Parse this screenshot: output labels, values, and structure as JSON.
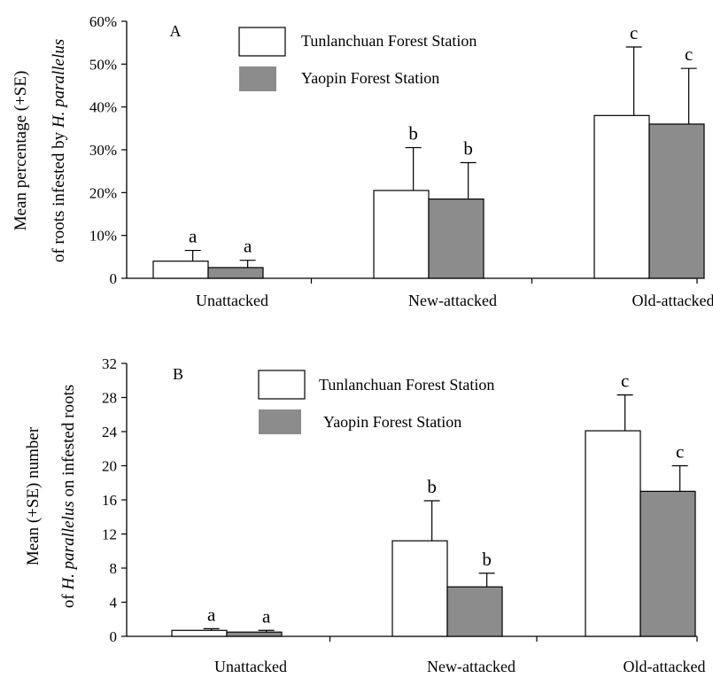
{
  "colors": {
    "series_0": "#ffffff",
    "series_1": "#8c8c8c",
    "stroke": "#000000"
  },
  "chart_data": [
    {
      "type": "bar",
      "panel_label": "A",
      "ylabel_line1": "Mean percentage (+SE)",
      "ylabel_line2_prefix": "of roots infested by ",
      "ylabel_line2_italic": "H. parallelus",
      "xlabel": "",
      "ylim": [
        0,
        60
      ],
      "yticks": [
        0,
        10,
        20,
        30,
        40,
        50,
        60
      ],
      "ytick_labels": [
        "0",
        "10%",
        "20%",
        "30%",
        "40%",
        "50%",
        "60%"
      ],
      "categories": [
        "Unattacked",
        "New-attacked",
        "Old-attacked"
      ],
      "legend_position": "top-center",
      "series": [
        {
          "name": "Tunlanchuan Forest Station",
          "values": [
            4,
            20.5,
            38
          ],
          "se": [
            2.5,
            10,
            16
          ],
          "letters": [
            "a",
            "b",
            "c"
          ]
        },
        {
          "name": "Yaopin Forest Station",
          "values": [
            2.5,
            18.5,
            36
          ],
          "se": [
            1.7,
            8.5,
            13
          ],
          "letters": [
            "a",
            "b",
            "c"
          ]
        }
      ]
    },
    {
      "type": "bar",
      "panel_label": "B",
      "ylabel_line1": "Mean (+SE) number",
      "ylabel_line2_prefix": "of ",
      "ylabel_line2_italic": "H. parallelus",
      "ylabel_line2_suffix": " on infested roots",
      "xlabel": "",
      "ylim": [
        0,
        32
      ],
      "yticks": [
        0,
        4,
        8,
        12,
        16,
        20,
        24,
        28,
        32
      ],
      "ytick_labels": [
        "0",
        "4",
        "8",
        "12",
        "16",
        "20",
        "24",
        "28",
        "32"
      ],
      "categories": [
        "Unattacked",
        "New-attacked",
        "Old-attacked"
      ],
      "legend_position": "top-center",
      "series": [
        {
          "name": "Tunlanchuan Forest Station",
          "values": [
            0.7,
            11.2,
            24.1
          ],
          "se": [
            0.2,
            4.7,
            4.2
          ],
          "letters": [
            "a",
            "b",
            "c"
          ]
        },
        {
          "name": "Yaopin Forest Station",
          "values": [
            0.5,
            5.8,
            17.0
          ],
          "se": [
            0.2,
            1.6,
            3.0
          ],
          "letters": [
            "a",
            "b",
            "c"
          ]
        }
      ]
    }
  ]
}
